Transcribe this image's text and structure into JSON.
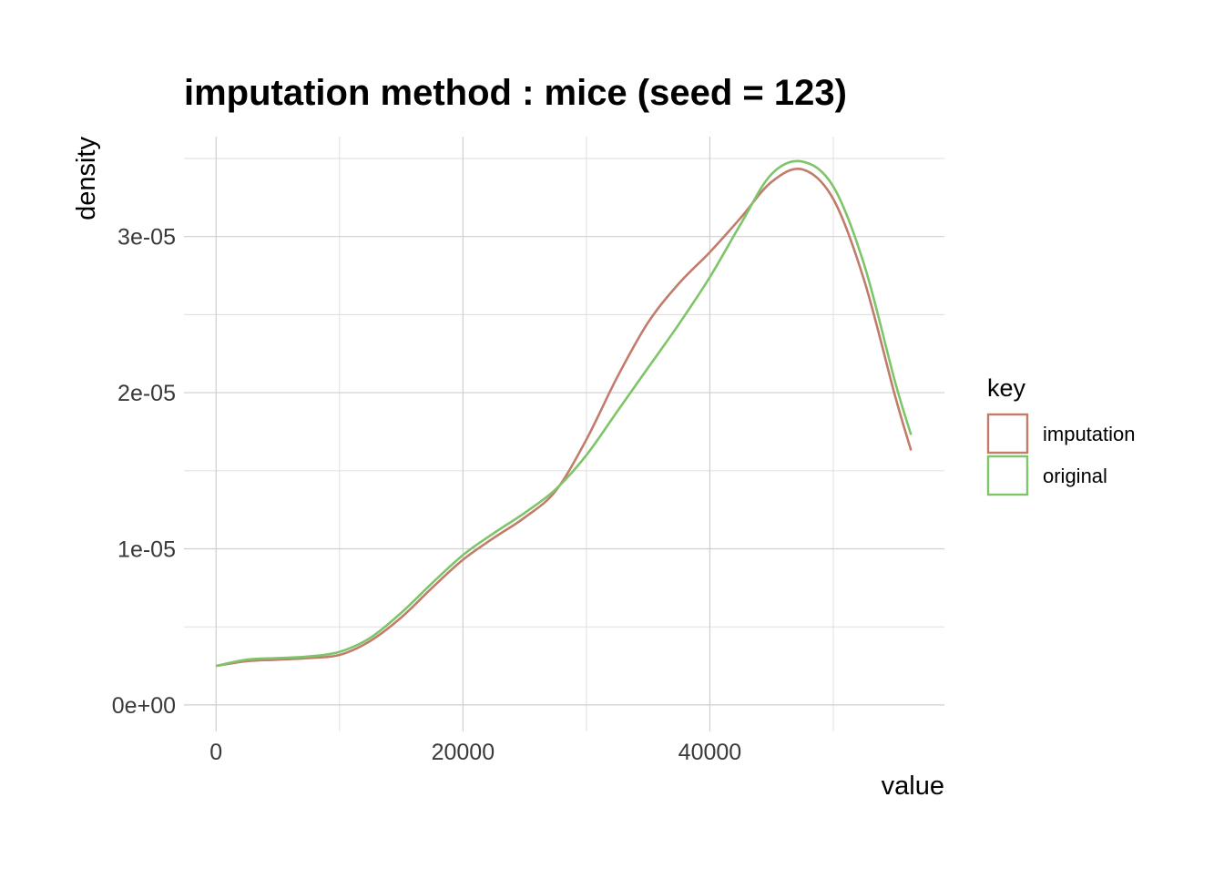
{
  "chart_data": {
    "type": "line",
    "title": "imputation method : mice (seed = 123)",
    "xlabel": "value",
    "ylabel": "density",
    "xlim": [
      -2600,
      59000
    ],
    "ylim": [
      -1.7e-06,
      3.64e-05
    ],
    "x_ticks": [
      0,
      20000,
      40000
    ],
    "x_tick_labels": [
      "0",
      "20000",
      "40000"
    ],
    "x_minor_ticks": [
      10000,
      30000,
      50000
    ],
    "y_ticks": [
      0,
      1e-05,
      2e-05,
      3e-05
    ],
    "y_tick_labels": [
      "0e+00",
      "1e-05",
      "2e-05",
      "3e-05"
    ],
    "y_minor_ticks": [
      5e-06,
      1.5e-05,
      2.5e-05,
      3.5e-05
    ],
    "grid": true,
    "legend": {
      "title": "key",
      "position": "right"
    },
    "series": [
      {
        "name": "imputation",
        "color": "#c17c6c",
        "x": [
          0,
          2500,
          5000,
          7500,
          10000,
          12500,
          15000,
          17500,
          20000,
          22500,
          25000,
          27500,
          30000,
          32500,
          35000,
          37500,
          40000,
          42500,
          45000,
          47500,
          50000,
          52500,
          55000,
          56300
        ],
        "y": [
          2.5e-06,
          2.8e-06,
          2.9e-06,
          3e-06,
          3.2e-06,
          4.1e-06,
          5.6e-06,
          7.5e-06,
          9.3e-06,
          1.07e-05,
          1.2e-05,
          1.37e-05,
          1.7e-05,
          2.1e-05,
          2.45e-05,
          2.7e-05,
          2.9e-05,
          3.12e-05,
          3.35e-05,
          3.43e-05,
          3.24e-05,
          2.72e-05,
          1.98e-05,
          1.63e-05
        ]
      },
      {
        "name": "original",
        "color": "#7ec56a",
        "x": [
          0,
          2500,
          5000,
          7500,
          10000,
          12500,
          15000,
          17500,
          20000,
          22500,
          25000,
          27500,
          30000,
          32500,
          35000,
          37500,
          40000,
          42500,
          45000,
          47500,
          50000,
          52500,
          55000,
          56300
        ],
        "y": [
          2.5e-06,
          2.9e-06,
          3e-06,
          3.1e-06,
          3.4e-06,
          4.3e-06,
          5.9e-06,
          7.8e-06,
          9.6e-06,
          1.1e-05,
          1.23e-05,
          1.38e-05,
          1.6e-05,
          1.88e-05,
          2.16e-05,
          2.44e-05,
          2.74e-05,
          3.08e-05,
          3.4e-05,
          3.48e-05,
          3.32e-05,
          2.82e-05,
          2.07e-05,
          1.73e-05
        ]
      }
    ]
  }
}
